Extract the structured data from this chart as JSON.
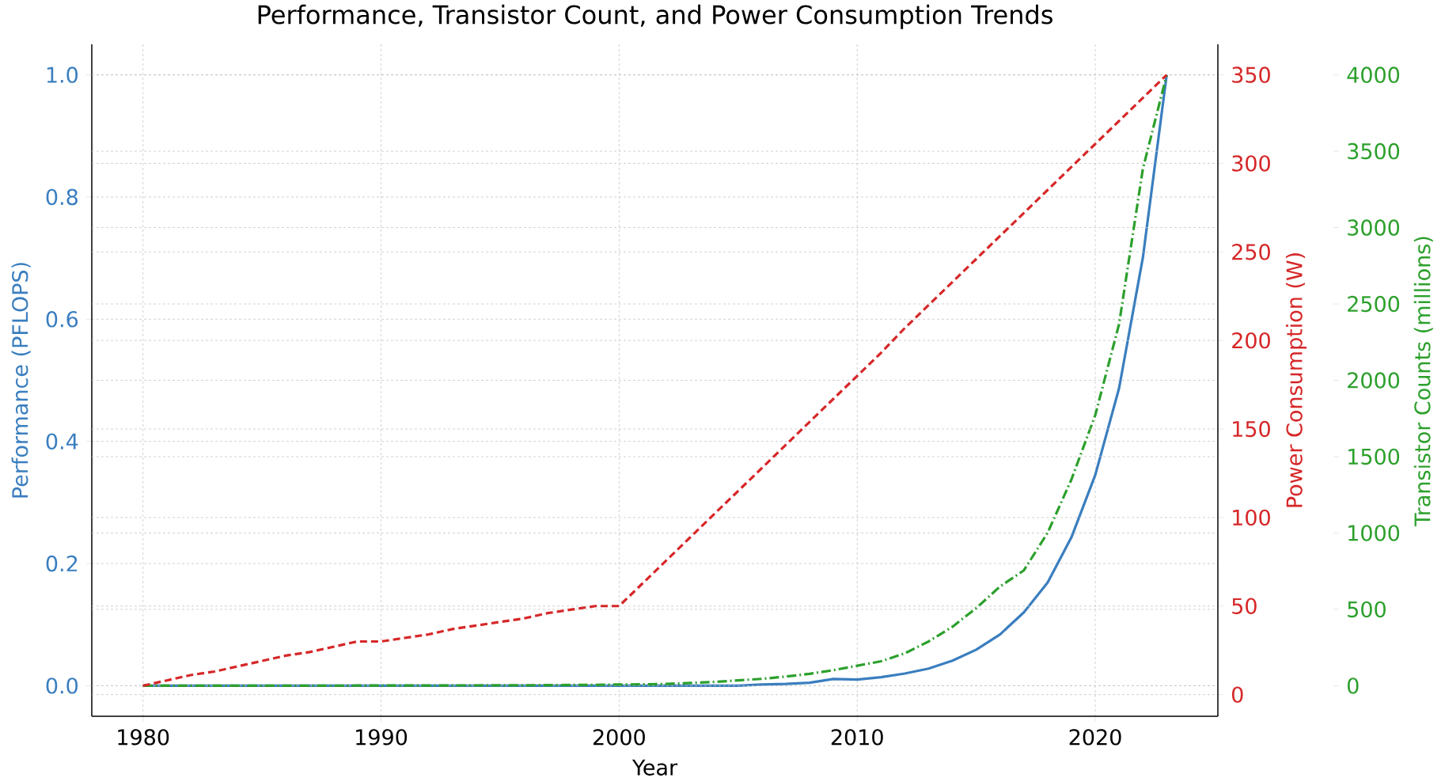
{
  "chart_data": {
    "type": "line",
    "title": "Performance, Transistor Count, and Power Consumption Trends",
    "xlabel": "Year",
    "ylabel": "Performance (PFLOPS)",
    "y2label": "Power Consumption (W)",
    "y3label": "Transistor Counts (millions)",
    "x": [
      1980,
      1981,
      1982,
      1983,
      1984,
      1985,
      1986,
      1987,
      1988,
      1989,
      1990,
      1991,
      1992,
      1993,
      1994,
      1995,
      1996,
      1997,
      1998,
      1999,
      2000,
      2001,
      2002,
      2003,
      2004,
      2005,
      2006,
      2007,
      2008,
      2009,
      2010,
      2011,
      2012,
      2013,
      2014,
      2015,
      2016,
      2017,
      2018,
      2019,
      2020,
      2021,
      2022,
      2023
    ],
    "series": [
      {
        "color": "#3a7ebf",
        "line_style": "solid",
        "axis": "y",
        "values": [
          0,
          0,
          0,
          0,
          0,
          0,
          0,
          0,
          0,
          0,
          0,
          0,
          0,
          0,
          0,
          0,
          0,
          0,
          0,
          0,
          0,
          0,
          0,
          0,
          0,
          0,
          0.002,
          0.003,
          0.005,
          0.011,
          0.01,
          0.014,
          0.02,
          0.028,
          0.041,
          0.059,
          0.084,
          0.12,
          0.169,
          0.243,
          0.345,
          0.487,
          0.701,
          1.0
        ]
      },
      {
        "color": "#d62728",
        "line_style": "dashed",
        "axis": "y2",
        "values": [
          5,
          8,
          11,
          13,
          16,
          19,
          22,
          24,
          27,
          30,
          30,
          32,
          34,
          37,
          39,
          41,
          43,
          46,
          48,
          50,
          50,
          63,
          76,
          89,
          102,
          115,
          128,
          141,
          154,
          167,
          180,
          193,
          207,
          220,
          233,
          246,
          259,
          272,
          285,
          298,
          311,
          324,
          337,
          350
        ]
      },
      {
        "color": "#2ca02c",
        "line_style": "dashdot",
        "axis": "y3",
        "values": [
          0,
          0,
          0,
          0,
          0,
          0,
          0,
          0,
          0,
          1,
          1,
          1,
          1,
          2,
          2,
          3,
          3,
          4,
          5,
          6,
          8,
          9,
          12,
          18,
          25,
          35,
          45,
          60,
          78,
          102,
          131,
          160,
          212,
          290,
          386,
          508,
          650,
          755,
          1002,
          1351,
          1772,
          2368,
          3385,
          4000
        ]
      }
    ],
    "xlim": [
      1977.85,
      2025.15
    ],
    "xticks": [
      1980,
      1990,
      2000,
      2010,
      2020
    ],
    "ylim": [
      -0.05,
      1.05
    ],
    "yticks": [
      {
        "value": 0,
        "label": "0.0"
      },
      {
        "value": 0.2,
        "label": "0.2"
      },
      {
        "value": 0.4,
        "label": "0.4"
      },
      {
        "value": 0.6,
        "label": "0.6"
      },
      {
        "value": 0.8,
        "label": "0.8"
      },
      {
        "value": 1.0,
        "label": "1.0"
      }
    ],
    "y2lim": [
      -12.25,
      367.25
    ],
    "y2ticks": [
      0,
      50,
      100,
      150,
      200,
      250,
      300,
      350
    ],
    "y3lim": [
      -200,
      4200
    ],
    "y3ticks": [
      0,
      500,
      1000,
      1500,
      2000,
      2500,
      3000,
      3500,
      4000
    ],
    "grid": true,
    "marker": "none"
  }
}
